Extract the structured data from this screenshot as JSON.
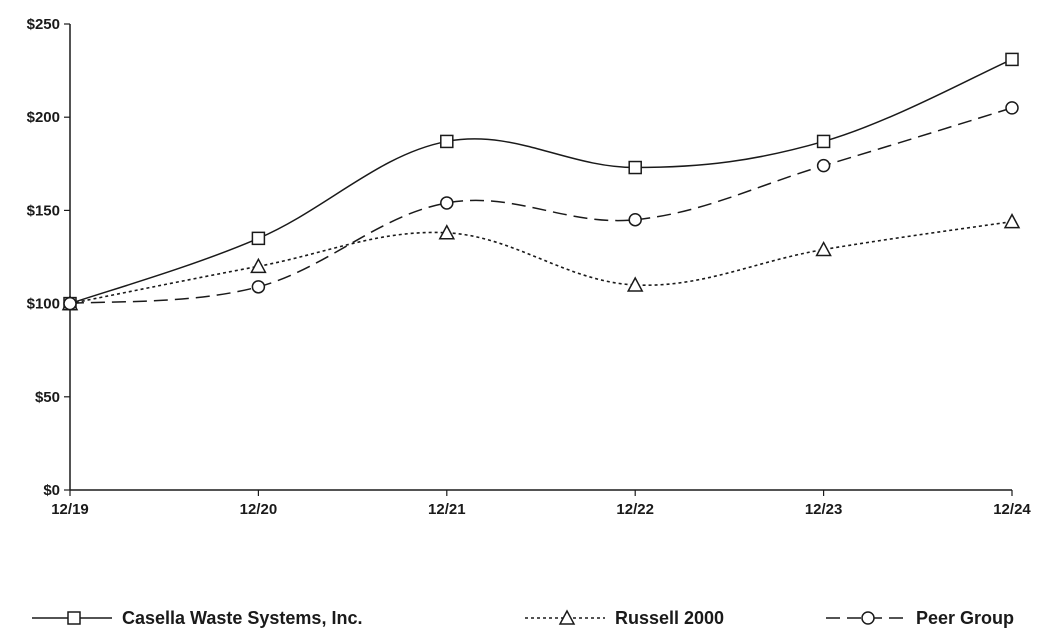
{
  "chart_data": {
    "type": "line",
    "categories": [
      "12/19",
      "12/20",
      "12/21",
      "12/22",
      "12/23",
      "12/24"
    ],
    "ylim": [
      0,
      250
    ],
    "y_ticks": [
      "$0",
      "$50",
      "$100",
      "$150",
      "$200",
      "$250"
    ],
    "y_tick_values": [
      0,
      50,
      100,
      150,
      200,
      250
    ],
    "grid": false,
    "legend_position": "bottom",
    "series": [
      {
        "name": "Casella Waste Systems, Inc.",
        "values": [
          100,
          135,
          187,
          173,
          187,
          231
        ],
        "marker": "square",
        "line_style": "solid",
        "color": "#1a1a1a"
      },
      {
        "name": "Russell 2000",
        "values": [
          100,
          120,
          138,
          110,
          129,
          144
        ],
        "marker": "triangle",
        "line_style": "dotted",
        "color": "#1a1a1a"
      },
      {
        "name": "Peer Group",
        "values": [
          100,
          109,
          154,
          145,
          174,
          205
        ],
        "marker": "circle",
        "line_style": "dashed",
        "color": "#1a1a1a"
      }
    ]
  }
}
